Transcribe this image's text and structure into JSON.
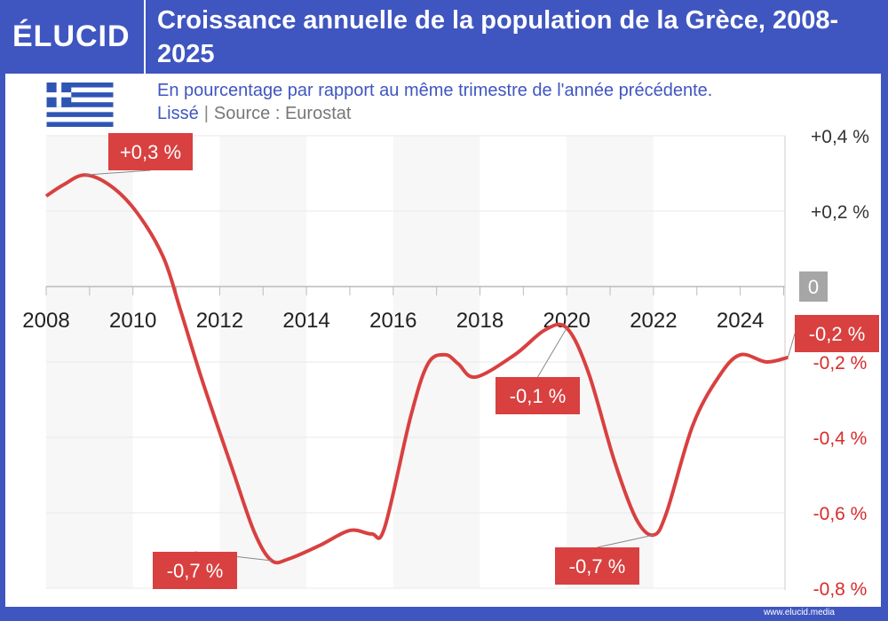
{
  "header": {
    "logo": "ÉLUCID",
    "title": "Croissance annuelle de la population de la Grèce, 2008-2025"
  },
  "subtitle": "En pourcentage par rapport au même trimestre de l'année précédente.",
  "note": "Lissé",
  "separator": "|",
  "source": "Source : Eurostat",
  "footer": "www.elucid.media",
  "colors": {
    "brand": "#3f56c0",
    "line": "#d94040",
    "label_bg": "#d94040",
    "zero_bg": "#a6a6a6",
    "band": "#f7f7f7"
  },
  "flag_icon": "greece-flag",
  "chart_data": {
    "type": "line",
    "xlim": [
      2008,
      2025.1
    ],
    "ylim": [
      -0.8,
      0.4
    ],
    "x_ticks": [
      "2008",
      "2010",
      "2012",
      "2014",
      "2016",
      "2018",
      "2020",
      "2022",
      "2024"
    ],
    "y_ticks": [
      {
        "v": 0.4,
        "label": "+0,4 %"
      },
      {
        "v": 0.2,
        "label": "+0,2 %"
      },
      {
        "v": 0,
        "label": "0"
      },
      {
        "v": -0.2,
        "label": "-0,2 %"
      },
      {
        "v": -0.4,
        "label": "-0,4 %"
      },
      {
        "v": -0.6,
        "label": "-0,6 %"
      },
      {
        "v": -0.8,
        "label": "-0,8 %"
      }
    ],
    "grid": true,
    "y_axis_side": "right",
    "shaded_bands": [
      [
        2008,
        2010
      ],
      [
        2012,
        2014
      ],
      [
        2016,
        2018
      ],
      [
        2020,
        2022
      ]
    ],
    "x": [
      2008.0,
      2008.4,
      2008.9,
      2009.5,
      2010.1,
      2010.7,
      2011.1,
      2011.6,
      2012.3,
      2012.8,
      2013.2,
      2013.6,
      2014.3,
      2015.0,
      2015.5,
      2015.8,
      2016.4,
      2016.8,
      2017.2,
      2017.5,
      2017.9,
      2018.8,
      2019.5,
      2020.0,
      2020.5,
      2021.1,
      2021.6,
      2022.0,
      2022.3,
      2022.9,
      2023.5,
      2024.0,
      2024.6,
      2025.1
    ],
    "y": [
      0.24,
      0.27,
      0.296,
      0.266,
      0.195,
      0.078,
      -0.064,
      -0.25,
      -0.487,
      -0.652,
      -0.727,
      -0.722,
      -0.687,
      -0.647,
      -0.656,
      -0.64,
      -0.346,
      -0.205,
      -0.181,
      -0.205,
      -0.24,
      -0.181,
      -0.115,
      -0.11,
      -0.228,
      -0.463,
      -0.616,
      -0.659,
      -0.6,
      -0.37,
      -0.24,
      -0.181,
      -0.2,
      -0.188
    ],
    "annotations": [
      {
        "label": "+0,3 %",
        "x": 2008.9,
        "y": 0.296
      },
      {
        "label": "-0,7 %",
        "x": 2013.2,
        "y": -0.727
      },
      {
        "label": "-0,1 %",
        "x": 2020.0,
        "y": -0.11
      },
      {
        "label": "-0,7 %",
        "x": 2022.0,
        "y": -0.659
      },
      {
        "label": "-0,2 %",
        "x": 2025.1,
        "y": -0.188
      }
    ]
  }
}
